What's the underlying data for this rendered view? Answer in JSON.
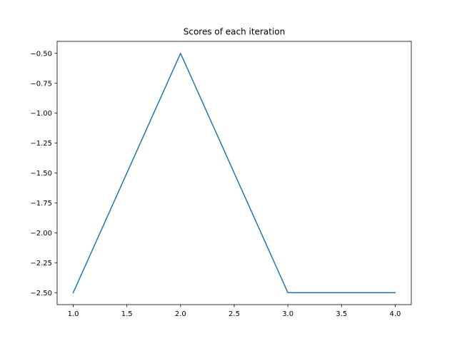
{
  "chart_data": {
    "type": "line",
    "title": "Scores of each iteration",
    "xlabel": "",
    "ylabel": "",
    "xlim": [
      0.85,
      4.15
    ],
    "ylim": [
      -2.6,
      -0.4
    ],
    "x": [
      1.0,
      2.0,
      3.0,
      4.0
    ],
    "series": [
      {
        "values": [
          -2.5,
          -0.5,
          -2.5,
          -2.5
        ],
        "color": "#1f77b4"
      }
    ],
    "xticks": [
      1.0,
      1.5,
      2.0,
      2.5,
      3.0,
      3.5,
      4.0
    ],
    "xtick_labels": [
      "1.0",
      "1.5",
      "2.0",
      "2.5",
      "3.0",
      "3.5",
      "4.0"
    ],
    "yticks": [
      -0.5,
      -0.75,
      -1.0,
      -1.25,
      -1.5,
      -1.75,
      -2.0,
      -2.25,
      -2.5
    ],
    "ytick_labels": [
      "−0.50",
      "−0.75",
      "−1.00",
      "−1.25",
      "−1.50",
      "−1.75",
      "−2.00",
      "−2.25",
      "−2.50"
    ],
    "grid": false,
    "legend": "none"
  }
}
